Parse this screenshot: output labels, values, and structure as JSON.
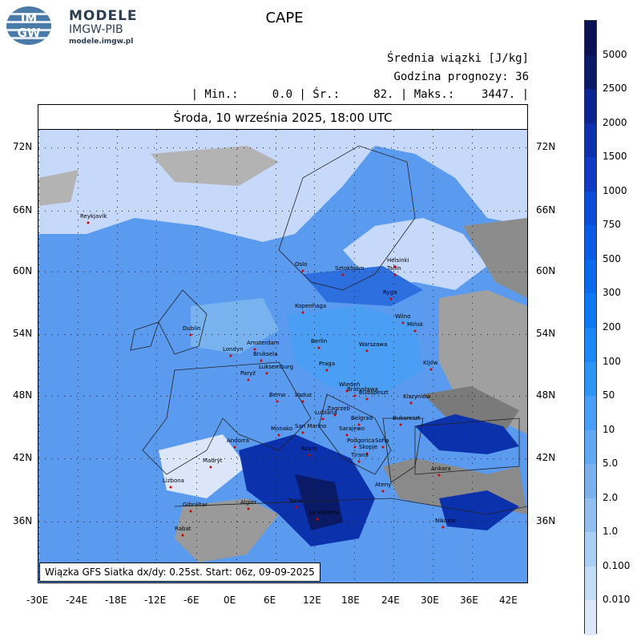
{
  "logo": {
    "badge_top": "IM",
    "badge_bottom": "GW",
    "name": "MODELE",
    "sub": "IMGW-PIB",
    "url": "modele.imgw.pl"
  },
  "header": {
    "title": "CAPE",
    "line1": "Średnia wiązki [J/kg]",
    "line2": "Godzina prognozy: 36",
    "line3": "| Min.:     0.0 | Śr.:     82. | Maks.:    3447. |",
    "date": "Środa, 10 września 2025, 18:00 UTC"
  },
  "footer": {
    "text": "Wiązka GFS Siatka dx/dy: 0.25st. Start: 06z, 09-09-2025"
  },
  "axes": {
    "lat_labels": [
      "72N",
      "66N",
      "60N",
      "54N",
      "48N",
      "42N",
      "36N"
    ],
    "lon_labels": [
      "-30E",
      "-24E",
      "-18E",
      "-12E",
      "-6E",
      "0E",
      "6E",
      "12E",
      "18E",
      "24E",
      "30E",
      "36E",
      "42E"
    ]
  },
  "legend": {
    "labels": [
      "5000",
      "2500",
      "2000",
      "1500",
      "1000",
      "750",
      "500",
      "300",
      "200",
      "100",
      "50",
      "10",
      "5.0",
      "2.0",
      "1.0",
      "0.100",
      "0.010"
    ],
    "colors": [
      "#0a1a66",
      "#0b2590",
      "#0c31ad",
      "#0d3bc2",
      "#0c4bd8",
      "#0a5ae6",
      "#0b69ee",
      "#0f78f3",
      "#1d87f4",
      "#2e95f5",
      "#4a9ef3",
      "#63a9f2",
      "#78b3f0",
      "#90c0f2",
      "#a9cff4",
      "#c3ddf7",
      "#dde9fb"
    ]
  },
  "cities": [
    {
      "name": "Reykjavík"
    },
    {
      "name": "Oslo"
    },
    {
      "name": "Sztokholm"
    },
    {
      "name": "Helsinki"
    },
    {
      "name": "Tallin"
    },
    {
      "name": "Ryga"
    },
    {
      "name": "Wilno"
    },
    {
      "name": "Mińsk"
    },
    {
      "name": "Kopenhaga"
    },
    {
      "name": "Dublin"
    },
    {
      "name": "Londyn"
    },
    {
      "name": "Amsterdam"
    },
    {
      "name": "Bruksela"
    },
    {
      "name": "Luksemburg"
    },
    {
      "name": "Paryż"
    },
    {
      "name": "Berlin"
    },
    {
      "name": "Warszawa"
    },
    {
      "name": "Praga"
    },
    {
      "name": "Kijów"
    },
    {
      "name": "Wiedeń"
    },
    {
      "name": "Bratysława"
    },
    {
      "name": "Budapeszt"
    },
    {
      "name": "Vaduz"
    },
    {
      "name": "Berno"
    },
    {
      "name": "Kiszyniów"
    },
    {
      "name": "Zagrzeb"
    },
    {
      "name": "Lublana"
    },
    {
      "name": "Belgrad"
    },
    {
      "name": "Bukareszt"
    },
    {
      "name": "Monako"
    },
    {
      "name": "San Marino"
    },
    {
      "name": "Sarajewo"
    },
    {
      "name": "Podgorica"
    },
    {
      "name": "Sofia"
    },
    {
      "name": "Skopje"
    },
    {
      "name": "Tirana"
    },
    {
      "name": "Andorra"
    },
    {
      "name": "Rzym"
    },
    {
      "name": "Madryt"
    },
    {
      "name": "Lizbona"
    },
    {
      "name": "Ateny"
    },
    {
      "name": "Ankara"
    },
    {
      "name": "Gibraltar"
    },
    {
      "name": "Algier"
    },
    {
      "name": "Tunis"
    },
    {
      "name": "La Valletta"
    },
    {
      "name": "Nikozja"
    },
    {
      "name": "Rabat"
    }
  ]
}
